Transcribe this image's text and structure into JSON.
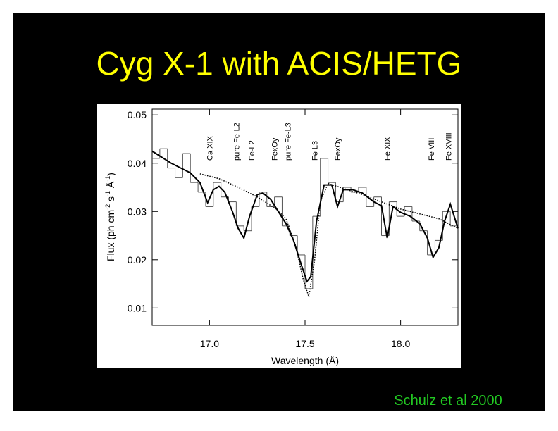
{
  "slide_title": "Cyg X-1 with ACIS/HETG",
  "credit": "Schulz  et al 2000",
  "chart_data": {
    "type": "line",
    "xlabel": "Wavelength (Å)",
    "ylabel_parts": [
      "Flux (ph cm",
      "-2",
      " s",
      "-1",
      " Å",
      "-1",
      ")"
    ],
    "xlim": [
      16.7,
      18.3
    ],
    "ylim": [
      0.0064,
      0.0512
    ],
    "xticks": [
      {
        "value": 17,
        "label": "17.0"
      },
      17.5,
      {
        "value": 18,
        "label": "18.0"
      }
    ],
    "yticks": [
      0.01,
      0.02,
      0.03,
      0.04,
      0.05
    ],
    "line_ids": [
      {
        "label": "Ca XIX",
        "x": 17.0
      },
      {
        "label": "pure Fe-L2",
        "x": 17.14
      },
      {
        "label": "Fe-L2",
        "x": 17.22
      },
      {
        "label": "FexOy",
        "x": 17.34
      },
      {
        "label": "pure Fe-L3",
        "x": 17.41
      },
      {
        "label": "Fe L3",
        "x": 17.55
      },
      {
        "label": "FexOy",
        "x": 17.67
      },
      {
        "label": "Fe XIX",
        "x": 17.93
      },
      {
        "label": "Fe VIII",
        "x": 18.16
      },
      {
        "label": "Fe XVIII",
        "x": 18.25
      }
    ],
    "series": [
      {
        "style": "histogram",
        "color": "#555555",
        "binwidth": 0.04,
        "x": [
          16.72,
          16.76,
          16.8,
          16.84,
          16.88,
          16.92,
          16.96,
          17.0,
          17.04,
          17.08,
          17.12,
          17.16,
          17.2,
          17.24,
          17.28,
          17.32,
          17.36,
          17.4,
          17.44,
          17.48,
          17.52,
          17.56,
          17.6,
          17.64,
          17.68,
          17.72,
          17.76,
          17.8,
          17.84,
          17.88,
          17.92,
          17.96,
          18.0,
          18.04,
          18.08,
          18.12,
          18.16,
          18.2,
          18.24,
          18.28
        ],
        "values": [
          0.041,
          0.043,
          0.039,
          0.037,
          0.042,
          0.036,
          0.034,
          0.031,
          0.036,
          0.033,
          0.032,
          0.027,
          0.026,
          0.031,
          0.034,
          0.031,
          0.033,
          0.027,
          0.025,
          0.021,
          0.014,
          0.029,
          0.041,
          0.036,
          0.032,
          0.035,
          0.034,
          0.035,
          0.031,
          0.033,
          0.025,
          0.032,
          0.029,
          0.031,
          0.028,
          0.026,
          0.021,
          0.024,
          0.03,
          0.027
        ]
      },
      {
        "style": "dotted",
        "color": "#000000",
        "x": [
          16.95,
          17.05,
          17.15,
          17.25,
          17.35,
          17.4,
          17.45,
          17.49,
          17.52,
          17.55,
          17.58,
          17.62,
          17.8,
          18.0,
          18.2,
          18.3
        ],
        "values": [
          0.0378,
          0.0368,
          0.035,
          0.033,
          0.0305,
          0.0285,
          0.023,
          0.016,
          0.0123,
          0.02,
          0.032,
          0.0358,
          0.0335,
          0.0305,
          0.0285,
          0.0265
        ]
      },
      {
        "style": "solid",
        "color": "#000000",
        "x": [
          16.7,
          16.8,
          16.9,
          16.95,
          16.99,
          17.02,
          17.05,
          17.08,
          17.12,
          17.15,
          17.18,
          17.21,
          17.25,
          17.28,
          17.32,
          17.36,
          17.4,
          17.44,
          17.48,
          17.51,
          17.53,
          17.56,
          17.6,
          17.64,
          17.67,
          17.7,
          17.75,
          17.8,
          17.86,
          17.9,
          17.93,
          17.96,
          18.0,
          18.05,
          18.1,
          18.14,
          18.17,
          18.2,
          18.23,
          18.26,
          18.28,
          18.3
        ],
        "values": [
          0.0425,
          0.04,
          0.038,
          0.036,
          0.0318,
          0.0345,
          0.0352,
          0.034,
          0.03,
          0.0265,
          0.0245,
          0.029,
          0.0335,
          0.0338,
          0.0325,
          0.03,
          0.0275,
          0.024,
          0.019,
          0.0155,
          0.0165,
          0.028,
          0.0355,
          0.0355,
          0.031,
          0.0345,
          0.0345,
          0.0338,
          0.032,
          0.0312,
          0.0245,
          0.031,
          0.0298,
          0.029,
          0.0275,
          0.0245,
          0.0205,
          0.0225,
          0.028,
          0.0315,
          0.029,
          0.0265
        ]
      }
    ]
  }
}
